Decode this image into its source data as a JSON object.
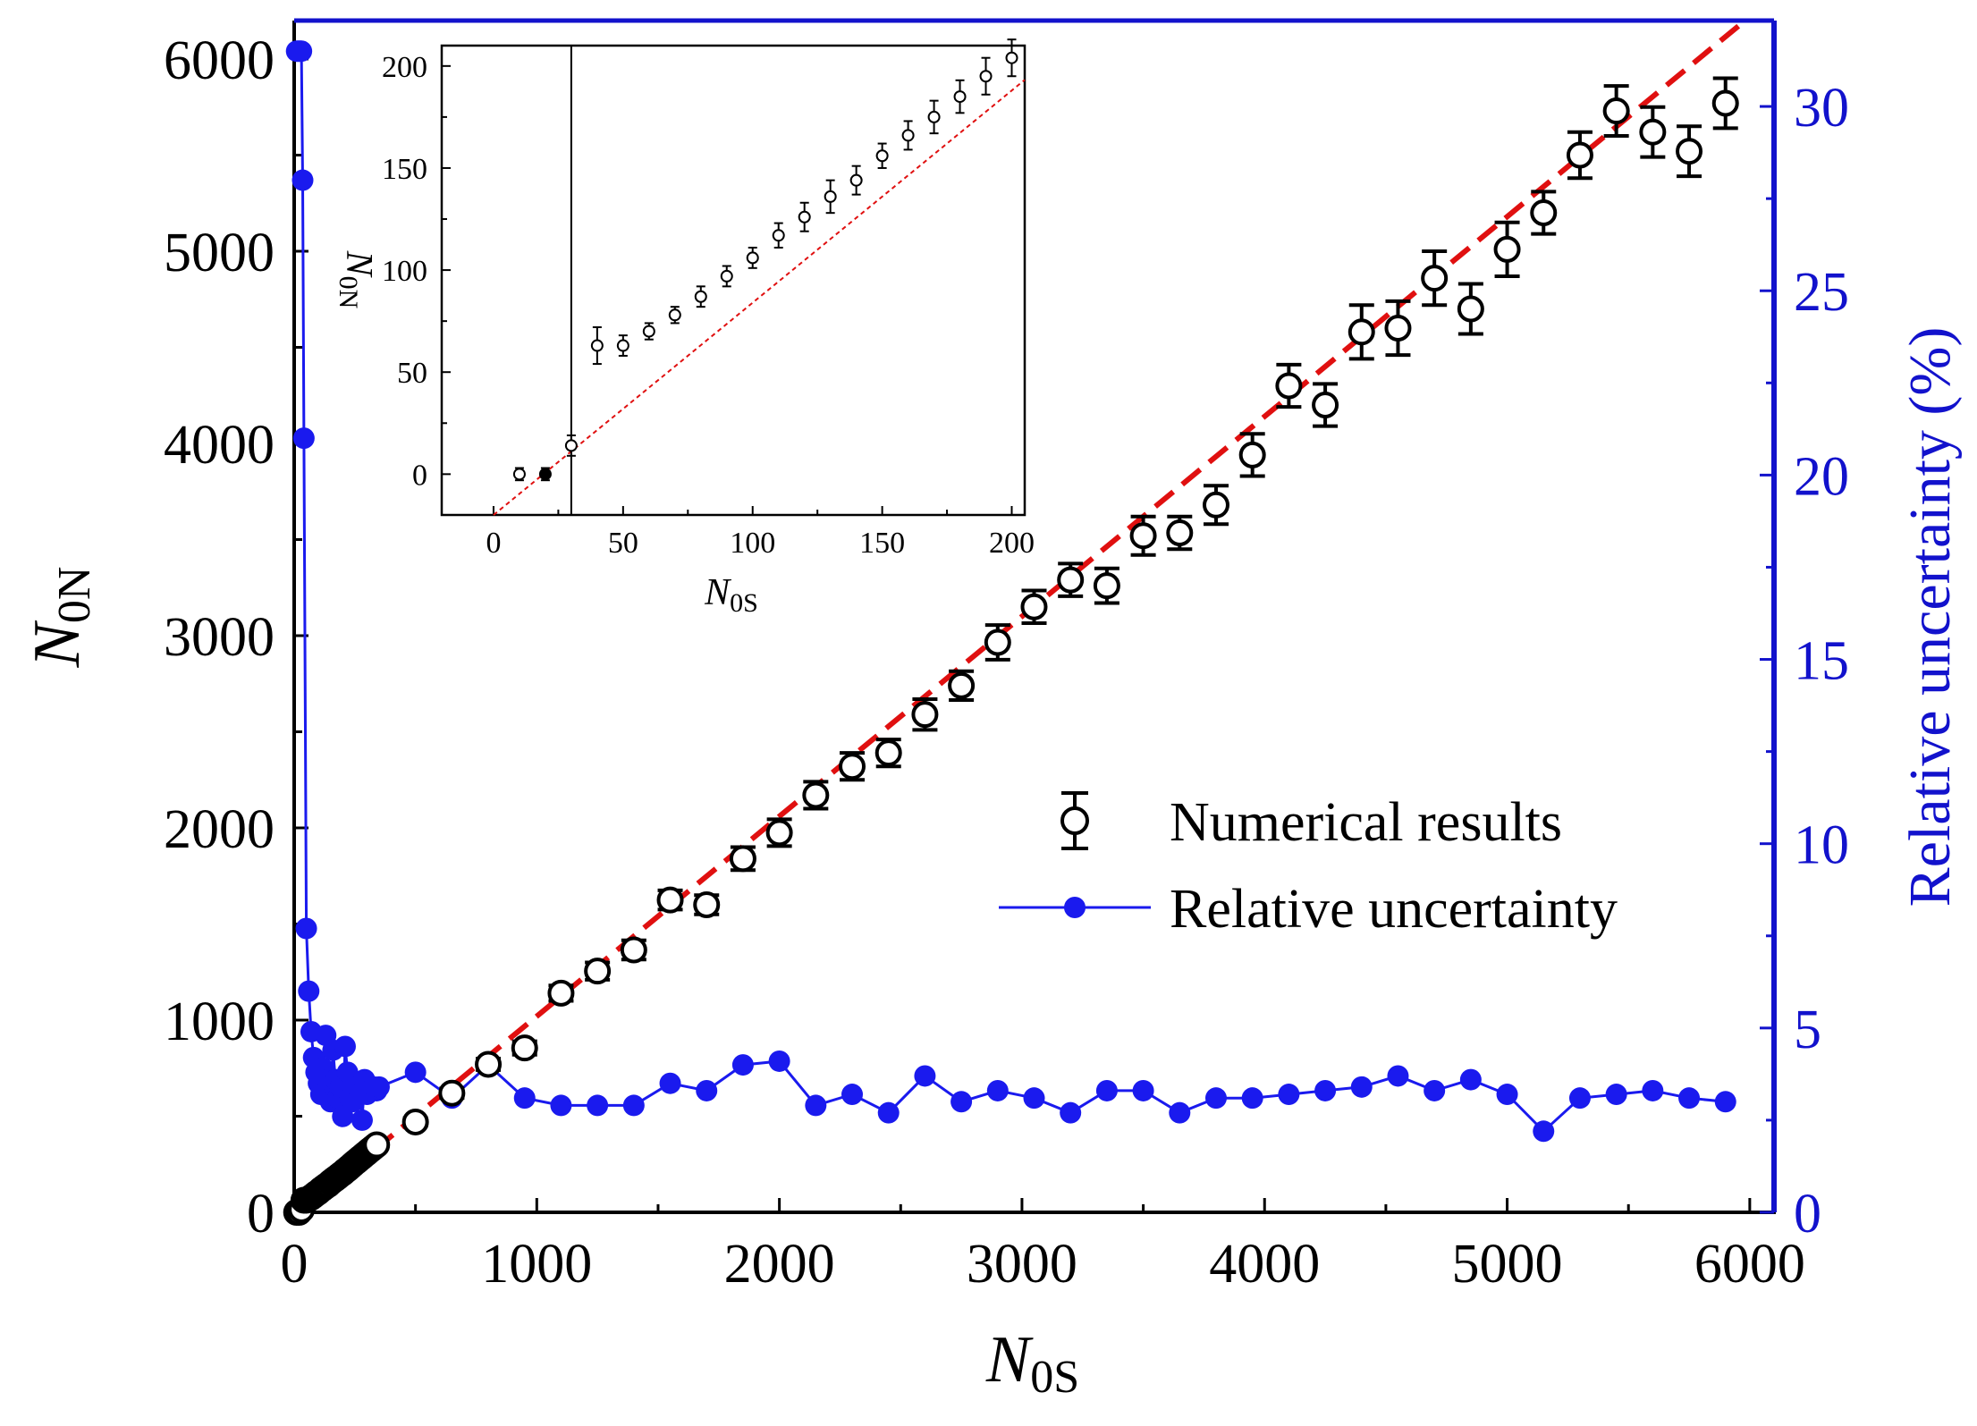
{
  "chart_data": [
    {
      "type": "scatter",
      "title": "",
      "xlabel": "N",
      "xlabel_sub": "0S",
      "ylabel": "N",
      "ylabel_sub": "0N",
      "y2label": "Relative uncertainty (%)",
      "xlim": [
        0,
        6100
      ],
      "ylim": [
        0,
        6200
      ],
      "y2lim": [
        0,
        32.33
      ],
      "xticks": [
        "0",
        "1000",
        "2000",
        "3000",
        "4000",
        "5000",
        "6000"
      ],
      "yticks": [
        "0",
        "1000",
        "2000",
        "3000",
        "4000",
        "5000",
        "6000"
      ],
      "y2ticks": [
        "0",
        "5",
        "10",
        "15",
        "20",
        "25",
        "30"
      ],
      "legend": {
        "position": "center-right",
        "entries": [
          "Numerical results",
          "Relative uncertainty"
        ]
      },
      "colors": {
        "axis_right": "#1212cc",
        "uncertainty": "#1a1aee",
        "fit": "#e01010",
        "numerical": "#000000"
      },
      "fit_line": {
        "slope": 1.04,
        "intercept": -20
      },
      "series": [
        {
          "name": "Numerical results",
          "x": [
            10,
            20,
            30,
            40,
            50,
            60,
            70,
            80,
            90,
            100,
            110,
            120,
            130,
            140,
            150,
            160,
            170,
            180,
            190,
            200,
            210,
            220,
            230,
            240,
            250,
            260,
            270,
            280,
            290,
            300,
            310,
            320,
            330,
            340,
            500,
            650,
            800,
            950,
            1100,
            1250,
            1400,
            1550,
            1700,
            1850,
            2000,
            2150,
            2300,
            2450,
            2600,
            2750,
            2900,
            3050,
            3200,
            3350,
            3500,
            3650,
            3800,
            3950,
            4100,
            4250,
            4400,
            4550,
            4700,
            4850,
            5000,
            5150,
            5300,
            5450,
            5600,
            5750,
            5900
          ],
          "y": [
            0,
            0,
            14,
            63,
            63,
            70,
            78,
            87,
            97,
            106,
            117,
            126,
            136,
            144,
            156,
            166,
            175,
            185,
            195,
            204,
            215,
            225,
            236,
            247,
            258,
            268,
            279,
            289,
            300,
            310,
            321,
            331,
            341,
            351,
            470,
            620,
            770,
            855,
            1140,
            1255,
            1365,
            1625,
            1600,
            1840,
            1975,
            2170,
            2320,
            2390,
            2590,
            2740,
            2965,
            3150,
            3290,
            3260,
            3520,
            3535,
            3680,
            3940,
            4300,
            4200,
            4580,
            4600,
            4860,
            4700,
            5010,
            5200,
            5500,
            5730,
            5620,
            5520,
            5770
          ],
          "err": [
            3,
            3,
            5,
            9,
            5,
            4,
            4,
            5,
            5,
            5,
            6,
            7,
            8,
            7,
            6,
            7,
            8,
            8,
            9,
            9,
            10,
            10,
            11,
            11,
            12,
            12,
            13,
            13,
            14,
            14,
            15,
            15,
            15,
            15,
            20,
            25,
            30,
            35,
            40,
            45,
            50,
            50,
            50,
            60,
            70,
            70,
            70,
            70,
            80,
            75,
            90,
            85,
            85,
            90,
            100,
            85,
            100,
            110,
            110,
            110,
            140,
            140,
            140,
            130,
            140,
            110,
            120,
            130,
            130,
            130,
            130
          ]
        },
        {
          "name": "Relative uncertainty",
          "axis": "right",
          "x": [
            10,
            15,
            20,
            25,
            30,
            35,
            40,
            50,
            60,
            70,
            80,
            90,
            100,
            110,
            120,
            130,
            140,
            150,
            160,
            170,
            180,
            190,
            200,
            210,
            220,
            230,
            240,
            250,
            260,
            270,
            280,
            290,
            300,
            310,
            320,
            330,
            340,
            350,
            500,
            650,
            800,
            950,
            1100,
            1250,
            1400,
            1550,
            1700,
            1850,
            2000,
            2150,
            2300,
            2450,
            2600,
            2750,
            2900,
            3050,
            3200,
            3350,
            3500,
            3650,
            3800,
            3950,
            4100,
            4250,
            4400,
            4550,
            4700,
            4850,
            5000,
            5150,
            5300,
            5450,
            5600,
            5750,
            5900
          ],
          "y": [
            31.5,
            31.5,
            31.5,
            31.5,
            31.5,
            28,
            21,
            7.7,
            6.0,
            4.9,
            4.2,
            3.8,
            3.5,
            3.2,
            3.9,
            4.8,
            3.6,
            3.0,
            4.4,
            3.6,
            3.1,
            3.4,
            2.6,
            4.5,
            3.8,
            3.1,
            3.0,
            3.4,
            3.4,
            3.2,
            2.5,
            3.6,
            3.2,
            3.3,
            3.3,
            3.4,
            3.3,
            3.4,
            3.8,
            3.1,
            4.0,
            3.1,
            2.9,
            2.9,
            2.9,
            3.5,
            3.3,
            4.0,
            4.1,
            2.9,
            3.2,
            2.7,
            3.7,
            3.0,
            3.3,
            3.1,
            2.7,
            3.3,
            3.3,
            2.7,
            3.1,
            3.1,
            3.2,
            3.3,
            3.4,
            3.7,
            3.3,
            3.6,
            3.2,
            2.2,
            3.1,
            3.2,
            3.3,
            3.1,
            3.0
          ]
        }
      ]
    },
    {
      "type": "scatter",
      "title": "",
      "role": "inset",
      "xlabel": "N",
      "xlabel_sub": "0S",
      "ylabel": "N",
      "ylabel_sub": "0N",
      "xlim": [
        -20,
        205
      ],
      "ylim": [
        -20,
        210
      ],
      "xticks": [
        "0",
        "50",
        "100",
        "150",
        "200"
      ],
      "yticks": [
        "0",
        "50",
        "100",
        "150",
        "200"
      ],
      "vline_x": 30,
      "fit_line": {
        "slope": 1.04,
        "intercept": -20
      },
      "series": [
        {
          "name": "Numerical results",
          "x": [
            10,
            20,
            30,
            40,
            50,
            60,
            70,
            80,
            90,
            100,
            110,
            120,
            130,
            140,
            150,
            160,
            170,
            180,
            190,
            200
          ],
          "y": [
            0,
            0,
            14,
            63,
            63,
            70,
            78,
            87,
            97,
            106,
            117,
            126,
            136,
            144,
            156,
            166,
            175,
            185,
            195,
            204
          ],
          "err": [
            3,
            3,
            5,
            9,
            5,
            4,
            4,
            5,
            5,
            5,
            6,
            7,
            8,
            7,
            6,
            7,
            8,
            8,
            9,
            9
          ],
          "filled": [
            false,
            true,
            false,
            false,
            false,
            false,
            false,
            false,
            false,
            false,
            false,
            false,
            false,
            false,
            false,
            false,
            false,
            false,
            false,
            false
          ]
        }
      ]
    }
  ]
}
